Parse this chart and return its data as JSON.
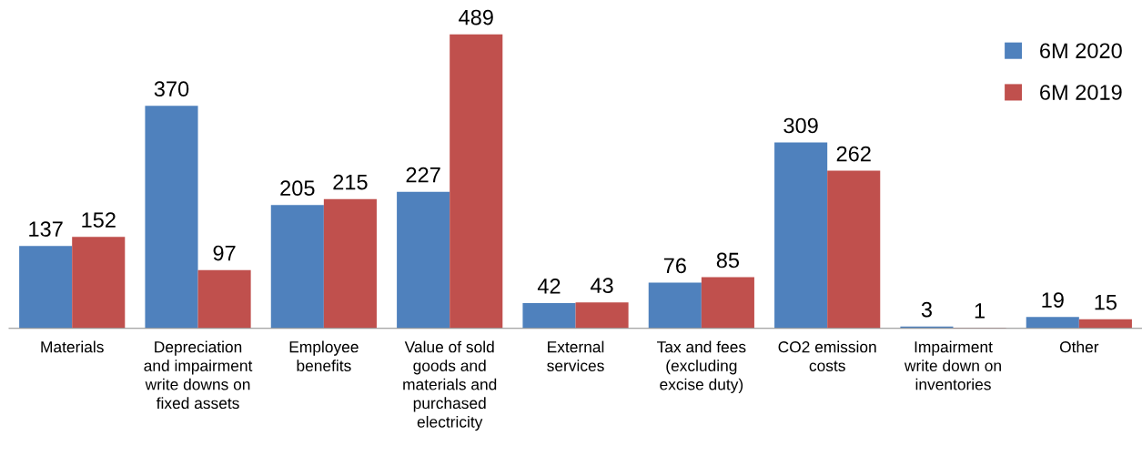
{
  "chart_data": {
    "type": "bar",
    "categories": [
      "Materials",
      "Depreciation\nand impairment\nwrite downs on\nfixed assets",
      "Employee\nbenefits",
      "Value of sold\ngoods and\nmaterials and\npurchased\nelectricity",
      "External\nservices",
      "Tax and fees\n(excluding\nexcise duty)",
      "CO2 emission\ncosts",
      "Impairment\nwrite down on\ninventories",
      "Other"
    ],
    "series": [
      {
        "name": "6M 2020",
        "color": "#4f81bd",
        "values": [
          137,
          370,
          205,
          227,
          42,
          76,
          309,
          3,
          19
        ]
      },
      {
        "name": "6M 2019",
        "color": "#c0504d",
        "values": [
          152,
          97,
          215,
          489,
          43,
          85,
          262,
          1,
          15
        ]
      }
    ],
    "data_labels": true,
    "legend": "top right",
    "grid": false
  }
}
